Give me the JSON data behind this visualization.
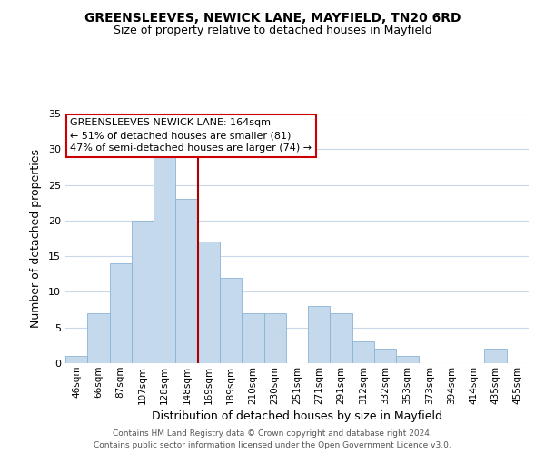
{
  "title": "GREENSLEEVES, NEWICK LANE, MAYFIELD, TN20 6RD",
  "subtitle": "Size of property relative to detached houses in Mayfield",
  "xlabel": "Distribution of detached houses by size in Mayfield",
  "ylabel": "Number of detached properties",
  "bar_labels": [
    "46sqm",
    "66sqm",
    "87sqm",
    "107sqm",
    "128sqm",
    "148sqm",
    "169sqm",
    "189sqm",
    "210sqm",
    "230sqm",
    "251sqm",
    "271sqm",
    "291sqm",
    "312sqm",
    "332sqm",
    "353sqm",
    "373sqm",
    "394sqm",
    "414sqm",
    "435sqm",
    "455sqm"
  ],
  "bar_values": [
    1,
    7,
    14,
    20,
    29,
    23,
    17,
    12,
    7,
    7,
    0,
    8,
    7,
    3,
    2,
    1,
    0,
    0,
    0,
    2,
    0
  ],
  "bar_color": "#c5d9ec",
  "bar_edgecolor": "#8ab4d4",
  "vline_x": 5.5,
  "vline_color": "#aa0000",
  "ylim": [
    0,
    35
  ],
  "yticks": [
    0,
    5,
    10,
    15,
    20,
    25,
    30,
    35
  ],
  "annotation_title": "GREENSLEEVES NEWICK LANE: 164sqm",
  "annotation_line1": "← 51% of detached houses are smaller (81)",
  "annotation_line2": "47% of semi-detached houses are larger (74) →",
  "annotation_box_facecolor": "#ffffff",
  "annotation_box_edgecolor": "#cc0000",
  "footer_line1": "Contains HM Land Registry data © Crown copyright and database right 2024.",
  "footer_line2": "Contains public sector information licensed under the Open Government Licence v3.0.",
  "background_color": "#ffffff",
  "grid_color": "#c8d8e8"
}
